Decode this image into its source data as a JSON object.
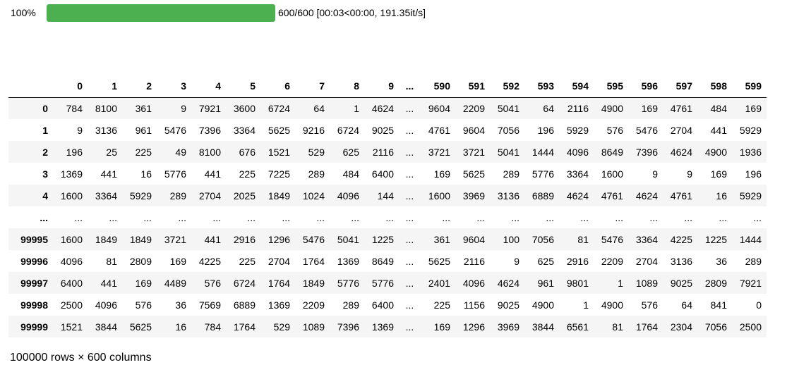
{
  "progress": {
    "percent_label": "100%",
    "fraction": 1.0,
    "status": "600/600 [00:03<00:00, 191.35it/s]",
    "fill_color": "#4caf50"
  },
  "dataframe": {
    "columns": [
      "0",
      "1",
      "2",
      "3",
      "4",
      "5",
      "6",
      "7",
      "8",
      "9",
      "...",
      "590",
      "591",
      "592",
      "593",
      "594",
      "595",
      "596",
      "597",
      "598",
      "599"
    ],
    "rows": [
      {
        "index": "0",
        "cells": [
          "784",
          "8100",
          "361",
          "9",
          "7921",
          "3600",
          "6724",
          "64",
          "1",
          "4624",
          "...",
          "9604",
          "2209",
          "5041",
          "64",
          "2116",
          "4900",
          "169",
          "4761",
          "484",
          "169"
        ]
      },
      {
        "index": "1",
        "cells": [
          "9",
          "3136",
          "961",
          "5476",
          "7396",
          "3364",
          "5625",
          "9216",
          "6724",
          "9025",
          "...",
          "4761",
          "9604",
          "7056",
          "196",
          "5929",
          "576",
          "5476",
          "2704",
          "441",
          "5929"
        ]
      },
      {
        "index": "2",
        "cells": [
          "196",
          "25",
          "225",
          "49",
          "8100",
          "676",
          "1521",
          "529",
          "625",
          "2116",
          "...",
          "3721",
          "3721",
          "5041",
          "1444",
          "4096",
          "8649",
          "7396",
          "4624",
          "4900",
          "1936"
        ]
      },
      {
        "index": "3",
        "cells": [
          "1369",
          "441",
          "16",
          "5776",
          "441",
          "225",
          "7225",
          "289",
          "484",
          "6400",
          "...",
          "169",
          "5625",
          "289",
          "5776",
          "3364",
          "1600",
          "9",
          "9",
          "169",
          "196"
        ]
      },
      {
        "index": "4",
        "cells": [
          "1600",
          "3364",
          "5929",
          "289",
          "2704",
          "2025",
          "1849",
          "1024",
          "4096",
          "144",
          "...",
          "1600",
          "3969",
          "3136",
          "6889",
          "4624",
          "4761",
          "4624",
          "4761",
          "16",
          "5929"
        ]
      },
      {
        "index": "...",
        "cells": [
          "...",
          "...",
          "...",
          "...",
          "...",
          "...",
          "...",
          "...",
          "...",
          "...",
          "...",
          "...",
          "...",
          "...",
          "...",
          "...",
          "...",
          "...",
          "...",
          "...",
          "..."
        ]
      },
      {
        "index": "99995",
        "cells": [
          "1600",
          "1849",
          "1849",
          "3721",
          "441",
          "2916",
          "1296",
          "5476",
          "5041",
          "1225",
          "...",
          "361",
          "9604",
          "100",
          "7056",
          "81",
          "5476",
          "3364",
          "4225",
          "1225",
          "1444"
        ]
      },
      {
        "index": "99996",
        "cells": [
          "4096",
          "81",
          "2809",
          "169",
          "4225",
          "225",
          "2704",
          "1764",
          "1369",
          "8649",
          "...",
          "5625",
          "2116",
          "9",
          "625",
          "2916",
          "2209",
          "2704",
          "3136",
          "36",
          "289"
        ]
      },
      {
        "index": "99997",
        "cells": [
          "6400",
          "441",
          "169",
          "4489",
          "576",
          "6724",
          "1764",
          "1849",
          "5776",
          "5776",
          "...",
          "2401",
          "4096",
          "4624",
          "961",
          "9801",
          "1",
          "1089",
          "9025",
          "2809",
          "7921"
        ]
      },
      {
        "index": "99998",
        "cells": [
          "2500",
          "4096",
          "576",
          "36",
          "7569",
          "6889",
          "1369",
          "2209",
          "289",
          "6400",
          "...",
          "225",
          "1156",
          "9025",
          "4900",
          "1",
          "4900",
          "576",
          "64",
          "841",
          "0"
        ]
      },
      {
        "index": "99999",
        "cells": [
          "1521",
          "3844",
          "5625",
          "16",
          "784",
          "1764",
          "529",
          "1089",
          "7396",
          "1369",
          "...",
          "169",
          "1296",
          "3969",
          "3844",
          "6561",
          "81",
          "1764",
          "2304",
          "7056",
          "2500"
        ]
      }
    ],
    "shape_label": "100000 rows × 600 columns"
  }
}
